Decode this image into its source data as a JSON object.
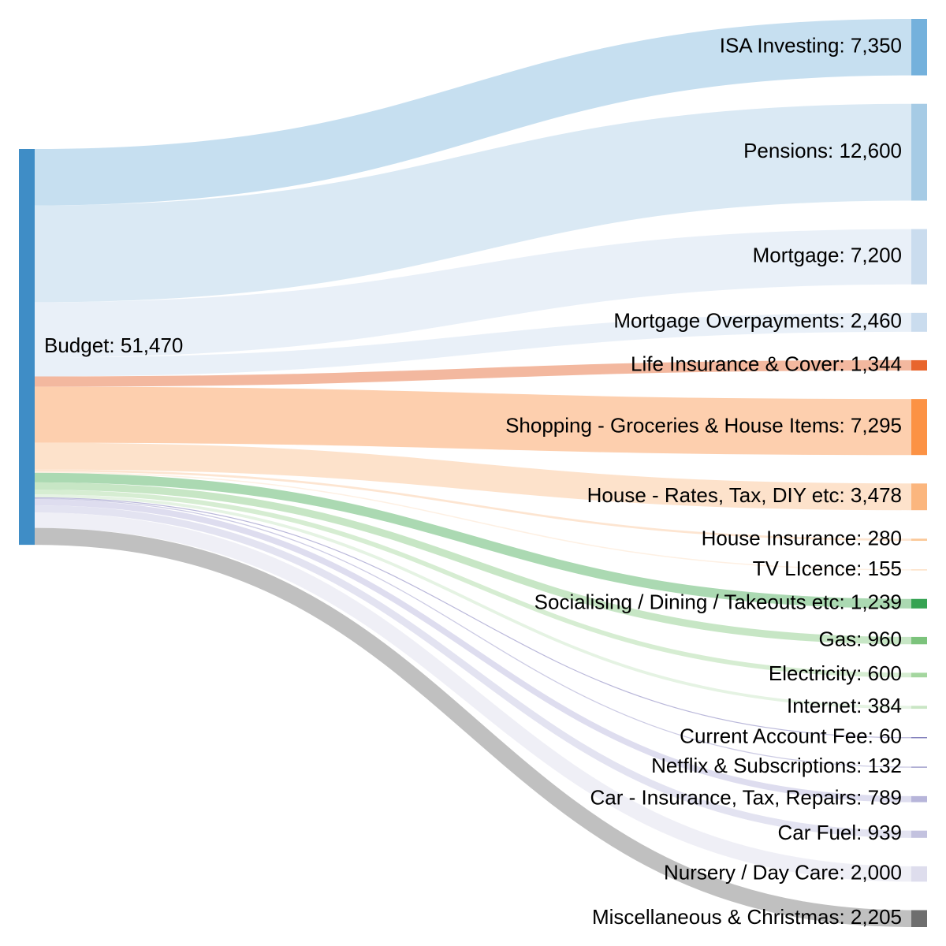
{
  "chart_data": {
    "type": "sankey",
    "source": {
      "label": "Budget: 51,470",
      "value": 51470,
      "color": "#3f8dc6"
    },
    "targets": [
      {
        "label": "ISA Investing: 7,350",
        "value": 7350,
        "node_color": "#74b1dc",
        "link_color": "#c3ddef"
      },
      {
        "label": "Pensions: 12,600",
        "value": 12600,
        "node_color": "#a6cbe5",
        "link_color": "#d8e8f3"
      },
      {
        "label": "Mortgage: 7,200",
        "value": 7200,
        "node_color": "#cadcee",
        "link_color": "#e8eff8"
      },
      {
        "label": "Mortgage Overpayments: 2,460",
        "value": 2460,
        "node_color": "#cadcee",
        "link_color": "#e8eff8"
      },
      {
        "label": "Life Insurance & Cover: 1,344",
        "value": 1344,
        "node_color": "#e8652d",
        "link_color": "#f2b49a"
      },
      {
        "label": "Shopping - Groceries & House Items: 7,295",
        "value": 7295,
        "node_color": "#fc9244",
        "link_color": "#fdccaa"
      },
      {
        "label": "House - Rates, Tax, DIY etc: 3,478",
        "value": 3478,
        "node_color": "#fbb67e",
        "link_color": "#fde0c8"
      },
      {
        "label": "House Insurance: 280",
        "value": 280,
        "node_color": "#fbc898",
        "link_color": "#fde4cf"
      },
      {
        "label": "TV LIcence: 155",
        "value": 155,
        "node_color": "#fde0c4",
        "link_color": "#feefe2"
      },
      {
        "label": "Socialising / Dining / Takeouts etc: 1,239",
        "value": 1239,
        "node_color": "#35a352",
        "link_color": "#a7d7ae"
      },
      {
        "label": "Gas: 960",
        "value": 960,
        "node_color": "#7cc37c",
        "link_color": "#c4e5c2"
      },
      {
        "label": "Electricity: 600",
        "value": 600,
        "node_color": "#a4d69f",
        "link_color": "#d4ecd0"
      },
      {
        "label": "Internet: 384",
        "value": 384,
        "node_color": "#c9e6c4",
        "link_color": "#e4f2e1"
      },
      {
        "label": "Current Account Fee: 60",
        "value": 60,
        "node_color": "#6a67ad",
        "link_color": "#b6b4d8"
      },
      {
        "label": "Netflix & Subscriptions: 132",
        "value": 132,
        "node_color": "#9290c4",
        "link_color": "#c9c8e3"
      },
      {
        "label": "Car - Insurance, Tax, Repairs: 789",
        "value": 789,
        "node_color": "#b7b5da",
        "link_color": "#dcdbee"
      },
      {
        "label": "Car Fuel: 939",
        "value": 939,
        "node_color": "#c3c2df",
        "link_color": "#e2e1f0"
      },
      {
        "label": "Nursery / Day Care: 2,000",
        "value": 2000,
        "node_color": "#dedded",
        "link_color": "#eeeef6"
      },
      {
        "label": "Miscellaneous & Christmas: 2,205",
        "value": 2205,
        "node_color": "#6e6e6e",
        "link_color": "#bdbdbd"
      }
    ]
  }
}
